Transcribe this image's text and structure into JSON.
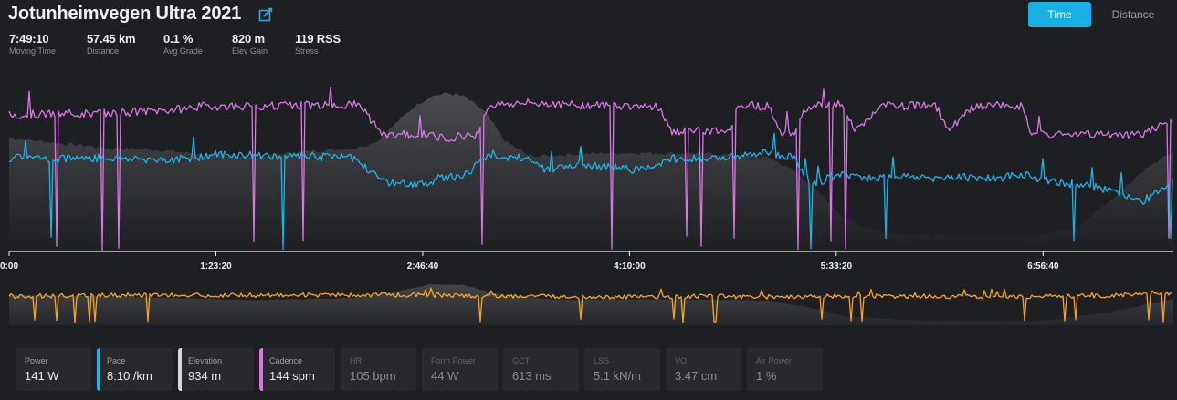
{
  "header": {
    "title": "Jotunheimvegen Ultra 2021"
  },
  "toggle": {
    "time_label": "Time",
    "distance_label": "Distance"
  },
  "stats": [
    {
      "value": "7:49:10",
      "label": "Moving Time"
    },
    {
      "value": "57.45 km",
      "label": "Distance"
    },
    {
      "value": "0.1 %",
      "label": "Avg Grade"
    },
    {
      "value": "820 m",
      "label": "Elev Gain"
    },
    {
      "value": "119 RSS",
      "label": "Stress"
    }
  ],
  "cards": [
    {
      "label": "Power",
      "value": "141 W",
      "selected": false,
      "color": ""
    },
    {
      "label": "Pace",
      "value": "8:10 /km",
      "selected": true,
      "color": "#19b5ea"
    },
    {
      "label": "Elevation",
      "value": "934 m",
      "selected": true,
      "color": "#d8d8d8"
    },
    {
      "label": "Cadence",
      "value": "144 spm",
      "selected": true,
      "color": "#d876e3"
    },
    {
      "label": "HR",
      "value": "105 bpm",
      "selected": false,
      "color": ""
    },
    {
      "label": "Form Power",
      "value": "44 W",
      "selected": false,
      "color": ""
    },
    {
      "label": "GCT",
      "value": "613 ms",
      "selected": false,
      "color": ""
    },
    {
      "label": "LSS",
      "value": "5.1 kN/m",
      "selected": false,
      "color": ""
    },
    {
      "label": "VO",
      "value": "3.47 cm",
      "selected": false,
      "color": ""
    },
    {
      "label": "Air Power",
      "value": "1 %",
      "selected": false,
      "color": ""
    }
  ],
  "chart_data": [
    {
      "type": "line",
      "title": "",
      "x_unit": "h:mm:ss",
      "x_ticks": [
        "0:00",
        "1:23:20",
        "2:46:40",
        "4:10:00",
        "5:33:20",
        "6:56:40"
      ],
      "x_tick_seconds": [
        0,
        5000,
        10000,
        15000,
        20000,
        25000
      ],
      "x_max_seconds": 28150,
      "series": [
        {
          "key": "elevation",
          "name": "Elevation",
          "color": "#d8d8d8",
          "x": [
            0,
            1200,
            2400,
            3600,
            4800,
            6000,
            7200,
            8400,
            8900,
            9400,
            9800,
            10200,
            10600,
            11000,
            11500,
            12000,
            12600,
            13400,
            14400,
            15400,
            16400,
            17400,
            18400,
            19000,
            19600,
            20200,
            21000,
            22000,
            23000,
            24000,
            25000,
            25800,
            26600,
            27400,
            28150
          ],
          "values": [
            0.68,
            0.65,
            0.62,
            0.61,
            0.58,
            0.57,
            0.6,
            0.62,
            0.66,
            0.78,
            0.87,
            0.93,
            0.95,
            0.93,
            0.84,
            0.66,
            0.57,
            0.58,
            0.59,
            0.59,
            0.59,
            0.58,
            0.56,
            0.48,
            0.35,
            0.2,
            0.12,
            0.1,
            0.09,
            0.09,
            0.1,
            0.14,
            0.3,
            0.48,
            0.6
          ]
        },
        {
          "key": "cadence",
          "name": "Cadence",
          "color": "#d876e3",
          "x": [
            0,
            2400,
            4000,
            4600,
            8500,
            9000,
            10200,
            10400,
            11300,
            11600,
            12600,
            13100,
            13400,
            15700,
            16000,
            17400,
            17600,
            17800,
            18400,
            18600,
            19000,
            19300,
            20100,
            20500,
            21100,
            21300,
            22400,
            22700,
            23300,
            23800,
            24500,
            24700,
            25500,
            26000,
            26800,
            27400,
            28150
          ],
          "values": [
            0.82,
            0.83,
            0.85,
            0.87,
            0.88,
            0.7,
            0.7,
            0.68,
            0.7,
            0.88,
            0.89,
            0.89,
            0.88,
            0.87,
            0.72,
            0.72,
            0.86,
            0.88,
            0.87,
            0.72,
            0.72,
            0.87,
            0.88,
            0.72,
            0.88,
            0.87,
            0.88,
            0.72,
            0.86,
            0.88,
            0.87,
            0.7,
            0.7,
            0.7,
            0.7,
            0.7,
            0.8
          ]
        },
        {
          "key": "pace",
          "name": "Pace",
          "color": "#19b5ea",
          "x": [
            0,
            2400,
            4000,
            5000,
            7200,
            8400,
            9000,
            10000,
            10400,
            11000,
            11600,
            12000,
            12400,
            13000,
            13600,
            14400,
            15200,
            15600,
            16000,
            17000,
            17600,
            18400,
            19000,
            19400,
            20000,
            20600,
            21400,
            22400,
            23000,
            23800,
            24600,
            25200,
            26000,
            26800,
            27400,
            28150
          ],
          "values": [
            0.56,
            0.56,
            0.55,
            0.58,
            0.57,
            0.56,
            0.42,
            0.4,
            0.44,
            0.45,
            0.59,
            0.57,
            0.56,
            0.49,
            0.52,
            0.51,
            0.49,
            0.52,
            0.56,
            0.55,
            0.58,
            0.59,
            0.56,
            0.4,
            0.46,
            0.44,
            0.45,
            0.44,
            0.45,
            0.44,
            0.46,
            0.42,
            0.4,
            0.36,
            0.3,
            0.42
          ]
        }
      ]
    },
    {
      "type": "line",
      "title": "",
      "x_max_seconds": 28150,
      "series": [
        {
          "key": "power",
          "name": "Power",
          "color": "#f5a623",
          "x": [
            0,
            3000,
            6000,
            9000,
            12000,
            15000,
            17000,
            18000,
            20000,
            22000,
            24000,
            26000,
            28150
          ],
          "values": [
            0.64,
            0.66,
            0.66,
            0.67,
            0.64,
            0.62,
            0.64,
            0.62,
            0.64,
            0.64,
            0.62,
            0.64,
            0.7
          ]
        },
        {
          "key": "elevation-bg",
          "name": "",
          "color": "#d8d8d8",
          "x": [
            0,
            2400,
            6000,
            8400,
            9400,
            10200,
            11000,
            12000,
            13400,
            16400,
            18400,
            19600,
            20200,
            22000,
            25000,
            26600,
            28150
          ],
          "values": [
            0.66,
            0.63,
            0.55,
            0.6,
            0.75,
            0.9,
            0.88,
            0.64,
            0.56,
            0.57,
            0.54,
            0.34,
            0.2,
            0.1,
            0.1,
            0.28,
            0.58
          ]
        }
      ]
    }
  ]
}
